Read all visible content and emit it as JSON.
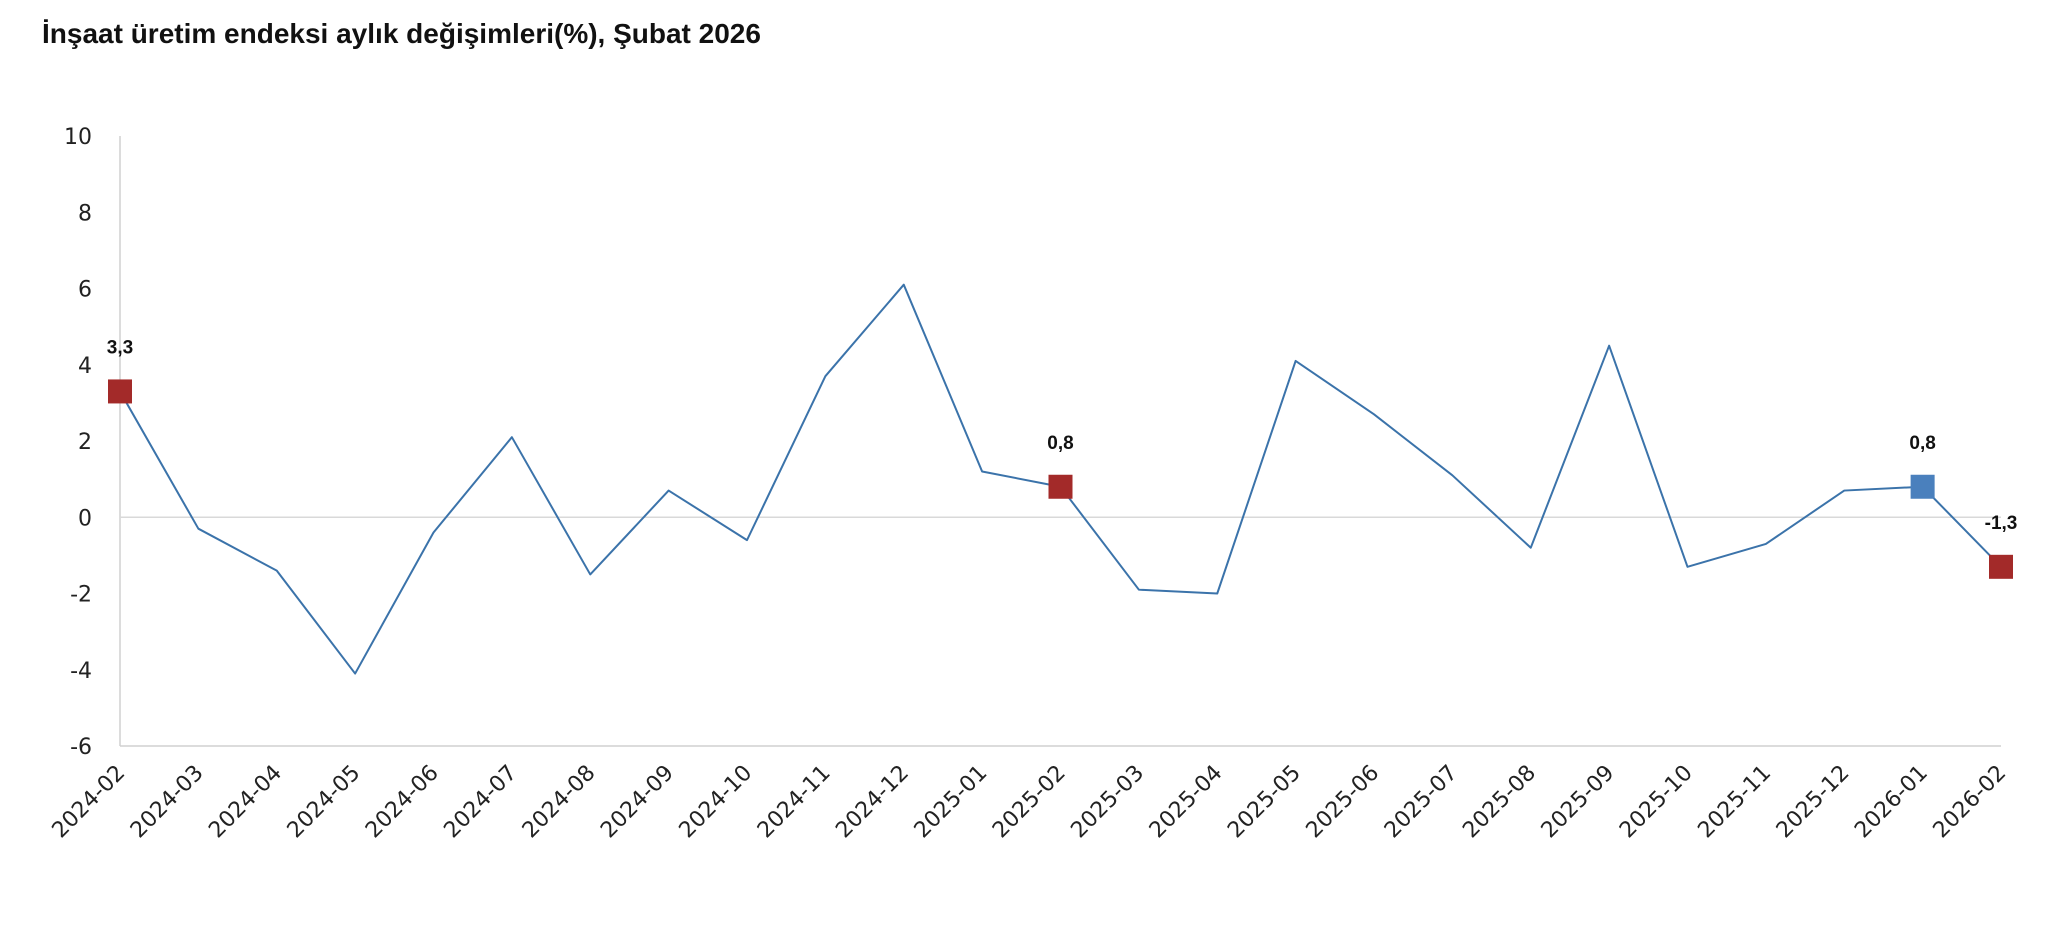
{
  "chart_data": {
    "type": "line",
    "title": "İnşaat üretim endeksi aylık değişimleri(%), Şubat 2026",
    "xlabel": "",
    "ylabel": "",
    "ylim": [
      -6,
      10
    ],
    "yticks": [
      "10",
      "8",
      "6",
      "4",
      "2",
      "0",
      "-2",
      "-4",
      "-6"
    ],
    "grid": false,
    "legend": "none",
    "categories": [
      "2024-02",
      "2024-03",
      "2024-04",
      "2024-05",
      "2024-06",
      "2024-07",
      "2024-08",
      "2024-09",
      "2024-10",
      "2024-11",
      "2024-12",
      "2025-01",
      "2025-02",
      "2025-03",
      "2025-04",
      "2025-05",
      "2025-06",
      "2025-07",
      "2025-08",
      "2025-09",
      "2025-10",
      "2025-11",
      "2025-12",
      "2026-01",
      "2026-02"
    ],
    "series": [
      {
        "values": [
          3.3,
          -0.3,
          -1.4,
          -4.1,
          -0.4,
          2.1,
          -1.5,
          0.7,
          -0.6,
          3.7,
          6.1,
          1.2,
          0.8,
          -1.9,
          -2.0,
          4.1,
          2.7,
          1.1,
          -0.8,
          4.5,
          -1.3,
          -0.7,
          0.7,
          0.8,
          -1.3
        ],
        "color": "#3b73aa"
      }
    ],
    "markers": [
      {
        "category": "2024-02",
        "value": 3.3,
        "label": "3,3",
        "color": "#a32a29"
      },
      {
        "category": "2025-02",
        "value": 0.8,
        "label": "0,8",
        "color": "#a32a29"
      },
      {
        "category": "2026-01",
        "value": 0.8,
        "label": "0,8",
        "color": "#4a80bd"
      },
      {
        "category": "2026-02",
        "value": -1.3,
        "label": "-1,3",
        "color": "#a32a29"
      }
    ],
    "colors": {
      "axis": "#d0d0d0",
      "zero_line": "#d9d9d9",
      "line": "#3b73aa"
    }
  }
}
